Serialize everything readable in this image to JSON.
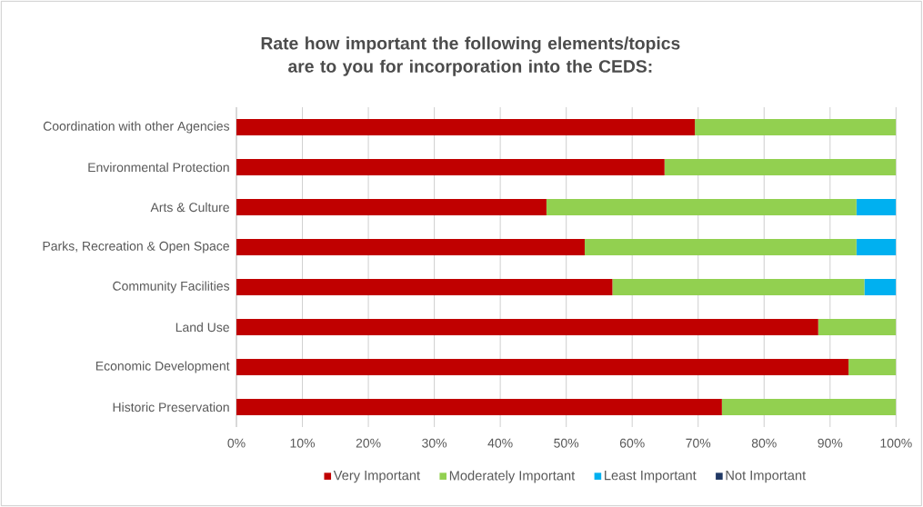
{
  "chart_data": {
    "type": "bar",
    "orientation": "horizontal",
    "stacked": true,
    "title": "Rate how important the following elements/topics are to you for incorporation into the CEDS:",
    "categories": [
      "Coordination with other Agencies",
      "Environmental Protection",
      "Arts & Culture",
      "Parks, Recreation & Open Space",
      "Community Facilities",
      "Land Use",
      "Economic Development",
      "Historic Preservation"
    ],
    "series": [
      {
        "name": "Very Important",
        "color": "#c00000",
        "values": [
          69.5,
          64.9,
          47.0,
          52.8,
          57.0,
          88.2,
          92.8,
          73.6
        ]
      },
      {
        "name": "Moderately Important",
        "color": "#92d050",
        "values": [
          30.5,
          35.1,
          47.0,
          41.2,
          38.2,
          11.8,
          7.2,
          26.4
        ]
      },
      {
        "name": "Least Important",
        "color": "#00b0f0",
        "values": [
          0,
          0,
          6.0,
          6.0,
          4.8,
          0,
          0,
          0
        ]
      },
      {
        "name": "Not  Important",
        "color": "#203864",
        "values": [
          0,
          0,
          0,
          0,
          0,
          0,
          0,
          0
        ]
      }
    ],
    "xlim": [
      0,
      100
    ],
    "xticks": [
      {
        "value": 0,
        "label": "0%"
      },
      {
        "value": 10,
        "label": "10%"
      },
      {
        "value": 20,
        "label": "20%"
      },
      {
        "value": 30,
        "label": "30%"
      },
      {
        "value": 40,
        "label": "40%"
      },
      {
        "value": 50,
        "label": "50%"
      },
      {
        "value": 60,
        "label": "60%"
      },
      {
        "value": 70,
        "label": "70%"
      },
      {
        "value": 80,
        "label": "80%"
      },
      {
        "value": 90,
        "label": "90%"
      },
      {
        "value": 100,
        "label": "100%"
      }
    ],
    "grid": "x",
    "legend": "bottom"
  }
}
